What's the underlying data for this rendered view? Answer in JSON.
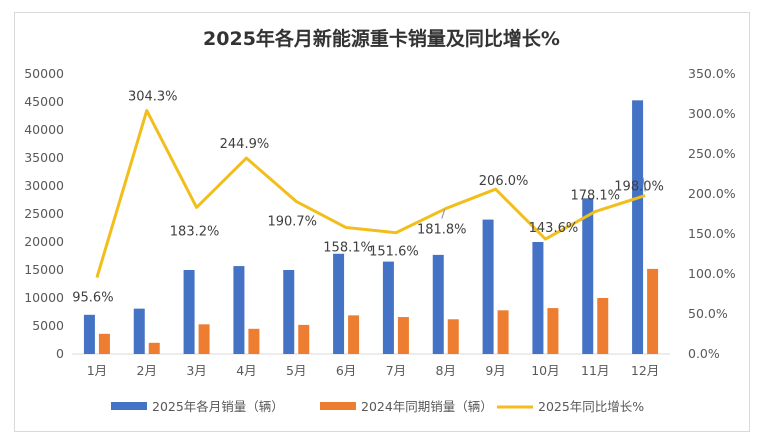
{
  "chart_data": {
    "type": "bar",
    "title": "2025年各月新能源重卡销量及同比增长%",
    "categories": [
      "1月",
      "2月",
      "3月",
      "4月",
      "5月",
      "6月",
      "7月",
      "8月",
      "9月",
      "10月",
      "11月",
      "12月"
    ],
    "series": [
      {
        "name": "2025年各月销量（辆）",
        "kind": "bar",
        "axis": "left",
        "color": "#4472C4",
        "values": [
          7000,
          8100,
          15000,
          15700,
          15000,
          17900,
          16500,
          17700,
          24000,
          20000,
          27800,
          45300
        ]
      },
      {
        "name": "2024年同期销量（辆）",
        "kind": "bar",
        "axis": "left",
        "color": "#ED7D31",
        "values": [
          3600,
          2000,
          5300,
          4500,
          5200,
          6900,
          6600,
          6200,
          7800,
          8200,
          10000,
          15200
        ]
      },
      {
        "name": "2025年同比增长%",
        "kind": "line",
        "axis": "right",
        "color": "#F2BE1C",
        "values": [
          95.6,
          304.3,
          183.2,
          244.9,
          190.7,
          158.1,
          151.6,
          181.8,
          206.0,
          143.6,
          178.1,
          198.0
        ],
        "labels": [
          "95.6%",
          "304.3%",
          "183.2%",
          "244.9%",
          "190.7%",
          "158.1%",
          "151.6%",
          "181.8%",
          "206.0%",
          "143.6%",
          "178.1%",
          "198.0%"
        ]
      }
    ],
    "left_axis": {
      "ylim": [
        0,
        50000
      ],
      "ticks": [
        "0",
        "5000",
        "10000",
        "15000",
        "20000",
        "25000",
        "30000",
        "35000",
        "40000",
        "45000",
        "50000"
      ]
    },
    "right_axis": {
      "ylim": [
        0,
        350
      ],
      "ticks": [
        "0.0%",
        "50.0%",
        "100.0%",
        "150.0%",
        "200.0%",
        "250.0%",
        "300.0%",
        "350.0%"
      ]
    },
    "legend_position": "bottom",
    "grid": false
  }
}
